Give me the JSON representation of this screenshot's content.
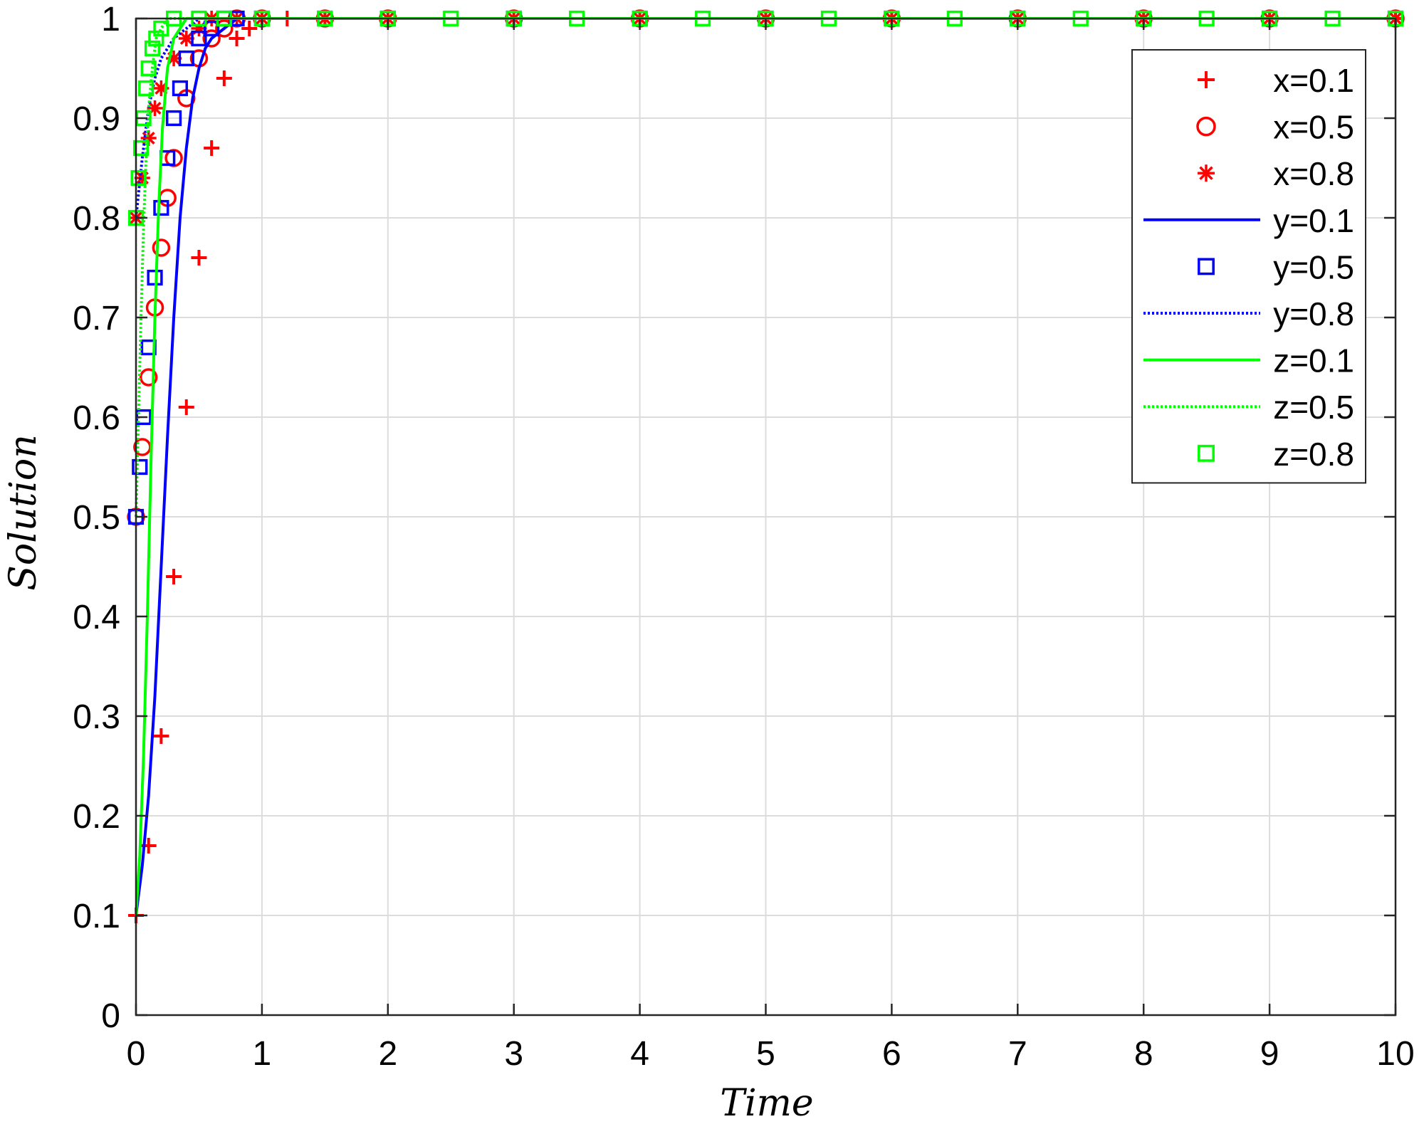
{
  "chart_data": {
    "type": "line",
    "title": "",
    "xlabel": "Time",
    "ylabel": "Solution",
    "xlim": [
      0,
      10
    ],
    "ylim": [
      0,
      1
    ],
    "xticks": [
      0,
      1,
      2,
      3,
      4,
      5,
      6,
      7,
      8,
      9,
      10
    ],
    "yticks": [
      0,
      0.1,
      0.2,
      0.3,
      0.4,
      0.5,
      0.6,
      0.7,
      0.8,
      0.9,
      1
    ],
    "grid": true,
    "legend_position": "top-right",
    "series": [
      {
        "name": "x=0.1",
        "color": "#ff0000",
        "marker": "plus",
        "line": "none",
        "x": [
          0,
          0.1,
          0.2,
          0.3,
          0.4,
          0.5,
          0.6,
          0.7,
          0.8,
          0.9,
          1.0,
          1.2,
          1.5,
          2,
          3,
          4,
          5,
          6,
          7,
          8,
          9,
          10
        ],
        "y": [
          0.1,
          0.17,
          0.28,
          0.44,
          0.61,
          0.76,
          0.87,
          0.94,
          0.98,
          0.99,
          1,
          1,
          1,
          1,
          1,
          1,
          1,
          1,
          1,
          1,
          1,
          1
        ]
      },
      {
        "name": "x=0.5",
        "color": "#ff0000",
        "marker": "circle",
        "line": "none",
        "x": [
          0,
          0.05,
          0.1,
          0.15,
          0.2,
          0.25,
          0.3,
          0.4,
          0.5,
          0.6,
          0.7,
          0.8,
          1.0,
          1.5,
          2,
          3,
          4,
          5,
          6,
          7,
          8,
          9,
          10
        ],
        "y": [
          0.5,
          0.57,
          0.64,
          0.71,
          0.77,
          0.82,
          0.86,
          0.92,
          0.96,
          0.98,
          0.99,
          1,
          1,
          1,
          1,
          1,
          1,
          1,
          1,
          1,
          1,
          1,
          1
        ]
      },
      {
        "name": "x=0.8",
        "color": "#ff0000",
        "marker": "asterisk",
        "line": "none",
        "x": [
          0,
          0.05,
          0.1,
          0.15,
          0.2,
          0.3,
          0.4,
          0.5,
          0.6,
          0.8,
          1.0,
          1.5,
          2,
          3,
          4,
          5,
          6,
          7,
          8,
          9,
          10
        ],
        "y": [
          0.8,
          0.84,
          0.88,
          0.91,
          0.93,
          0.96,
          0.98,
          0.99,
          1,
          1,
          1,
          1,
          1,
          1,
          1,
          1,
          1,
          1,
          1,
          1,
          1
        ]
      },
      {
        "name": "y=0.1",
        "color": "#0000ff",
        "marker": "none",
        "line": "solid",
        "x": [
          0,
          0.05,
          0.1,
          0.15,
          0.2,
          0.25,
          0.3,
          0.35,
          0.4,
          0.45,
          0.5,
          0.55,
          0.6,
          0.7,
          0.8,
          1.0,
          10
        ],
        "y": [
          0.1,
          0.15,
          0.22,
          0.32,
          0.45,
          0.58,
          0.7,
          0.8,
          0.87,
          0.92,
          0.95,
          0.97,
          0.98,
          0.99,
          1,
          1,
          1
        ]
      },
      {
        "name": "y=0.5",
        "color": "#0000ff",
        "marker": "square",
        "line": "none",
        "x": [
          0,
          0.03,
          0.06,
          0.1,
          0.15,
          0.2,
          0.25,
          0.3,
          0.35,
          0.4,
          0.5,
          0.6,
          0.7,
          0.8,
          1.0,
          1.5,
          2,
          3,
          4,
          5,
          6,
          7,
          8,
          9,
          10
        ],
        "y": [
          0.5,
          0.55,
          0.6,
          0.67,
          0.74,
          0.81,
          0.86,
          0.9,
          0.93,
          0.96,
          0.98,
          0.99,
          1,
          1,
          1,
          1,
          1,
          1,
          1,
          1,
          1,
          1,
          1,
          1,
          1
        ]
      },
      {
        "name": "y=0.8",
        "color": "#0000ff",
        "marker": "none",
        "line": "dotted",
        "x": [
          0,
          0.05,
          0.1,
          0.15,
          0.2,
          0.3,
          0.4,
          0.5,
          0.6,
          10
        ],
        "y": [
          0.8,
          0.86,
          0.91,
          0.94,
          0.96,
          0.98,
          0.99,
          1,
          1,
          1
        ]
      },
      {
        "name": "z=0.1",
        "color": "#00ff00",
        "marker": "none",
        "line": "solid",
        "x": [
          0,
          0.03,
          0.06,
          0.09,
          0.12,
          0.15,
          0.18,
          0.21,
          0.25,
          0.3,
          0.35,
          0.4,
          10
        ],
        "y": [
          0.1,
          0.16,
          0.26,
          0.4,
          0.56,
          0.7,
          0.81,
          0.89,
          0.95,
          0.98,
          0.99,
          1,
          1
        ]
      },
      {
        "name": "z=0.5",
        "color": "#00ff00",
        "marker": "none",
        "line": "dotted",
        "x": [
          0,
          0.02,
          0.04,
          0.06,
          0.08,
          0.1,
          0.13,
          0.16,
          0.2,
          0.25,
          10
        ],
        "y": [
          0.5,
          0.6,
          0.7,
          0.79,
          0.86,
          0.91,
          0.95,
          0.98,
          0.99,
          1,
          1
        ]
      },
      {
        "name": "z=0.8",
        "color": "#00ff00",
        "marker": "square",
        "line": "none",
        "x": [
          0,
          0.02,
          0.04,
          0.06,
          0.08,
          0.1,
          0.13,
          0.16,
          0.2,
          0.3,
          0.5,
          0.7,
          1.0,
          1.5,
          2,
          2.5,
          3,
          3.5,
          4,
          4.5,
          5,
          5.5,
          6,
          6.5,
          7,
          7.5,
          8,
          8.5,
          9,
          9.5,
          10
        ],
        "y": [
          0.8,
          0.84,
          0.87,
          0.9,
          0.93,
          0.95,
          0.97,
          0.98,
          0.99,
          1,
          1,
          1,
          1,
          1,
          1,
          1,
          1,
          1,
          1,
          1,
          1,
          1,
          1,
          1,
          1,
          1,
          1,
          1,
          1,
          1,
          1
        ]
      }
    ]
  }
}
